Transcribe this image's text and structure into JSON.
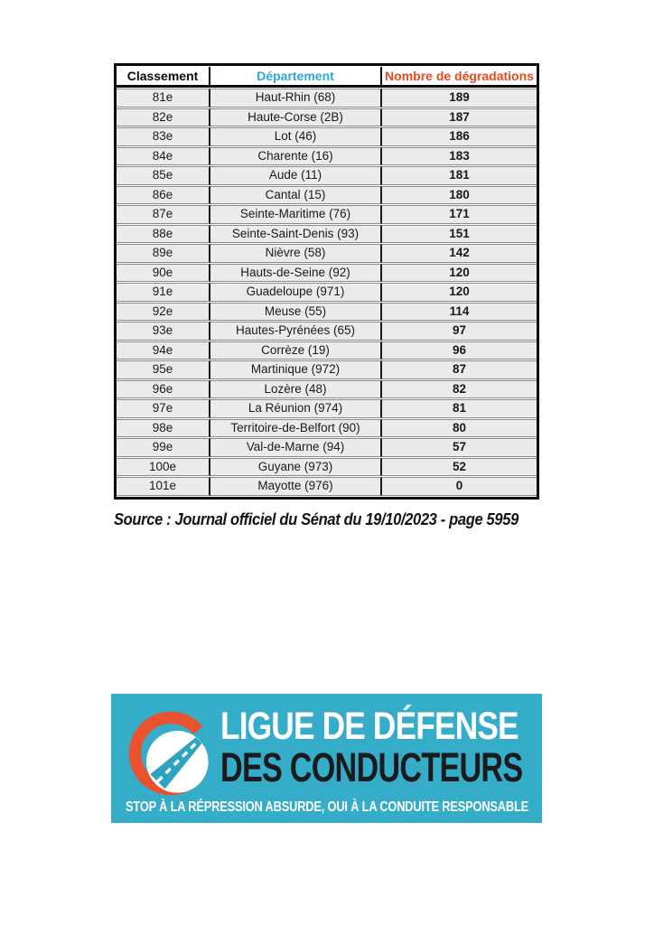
{
  "table": {
    "headers": {
      "rank": "Classement",
      "department": "Département",
      "count": "Nombre de dégradations"
    },
    "header_colors": {
      "rank": "#0a0a0a",
      "department": "#29a8df",
      "count": "#e8481c"
    },
    "rows": [
      {
        "rank": "81e",
        "department": "Haut-Rhin (68)",
        "count": "189"
      },
      {
        "rank": "82e",
        "department": "Haute-Corse (2B)",
        "count": "187"
      },
      {
        "rank": "83e",
        "department": "Lot (46)",
        "count": "186"
      },
      {
        "rank": "84e",
        "department": "Charente (16)",
        "count": "183"
      },
      {
        "rank": "85e",
        "department": "Aude (11)",
        "count": "181"
      },
      {
        "rank": "86e",
        "department": "Cantal (15)",
        "count": "180"
      },
      {
        "rank": "87e",
        "department": "Seinte-Maritime (76)",
        "count": "171"
      },
      {
        "rank": "88e",
        "department": "Seinte-Saint-Denis (93)",
        "count": "151"
      },
      {
        "rank": "89e",
        "department": "Nièvre (58)",
        "count": "142"
      },
      {
        "rank": "90e",
        "department": "Hauts-de-Seine (92)",
        "count": "120"
      },
      {
        "rank": "91e",
        "department": "Guadeloupe (971)",
        "count": "120"
      },
      {
        "rank": "92e",
        "department": "Meuse (55)",
        "count": "114"
      },
      {
        "rank": "93e",
        "department": "Hautes-Pyrénées (65)",
        "count": "97"
      },
      {
        "rank": "94e",
        "department": "Corrèze (19)",
        "count": "96"
      },
      {
        "rank": "95e",
        "department": "Martinique (972)",
        "count": "87"
      },
      {
        "rank": "96e",
        "department": "Lozère (48)",
        "count": "82"
      },
      {
        "rank": "97e",
        "department": "La Réunion (974)",
        "count": "81"
      },
      {
        "rank": "98e",
        "department": "Territoire-de-Belfort (90)",
        "count": "80"
      },
      {
        "rank": "99e",
        "department": "Val-de-Marne (94)",
        "count": "57"
      },
      {
        "rank": "100e",
        "department": "Guyane (973)",
        "count": "52"
      },
      {
        "rank": "101e",
        "department": "Mayotte (976)",
        "count": "0"
      }
    ]
  },
  "source_note": "Source : Journal officiel du Sénat du 19/10/2023 - page 5959",
  "logo": {
    "line1": "LIGUE DE DÉFENSE",
    "line2": "DES CONDUCTEURS",
    "tagline": "STOP À LA RÉPRESSION ABSURDE, OUI À LA CONDUITE RESPONSABLE",
    "icon": "road-in-c-badge-icon",
    "colors": {
      "background": "#35adc9",
      "ring_orange": "#e8532e",
      "circle_white": "#ffffff",
      "road_teal": "#2ea3bf",
      "line1_text": "#ffffff",
      "line2_text": "#1b1b1e",
      "tagline_text": "#ffffff"
    }
  }
}
